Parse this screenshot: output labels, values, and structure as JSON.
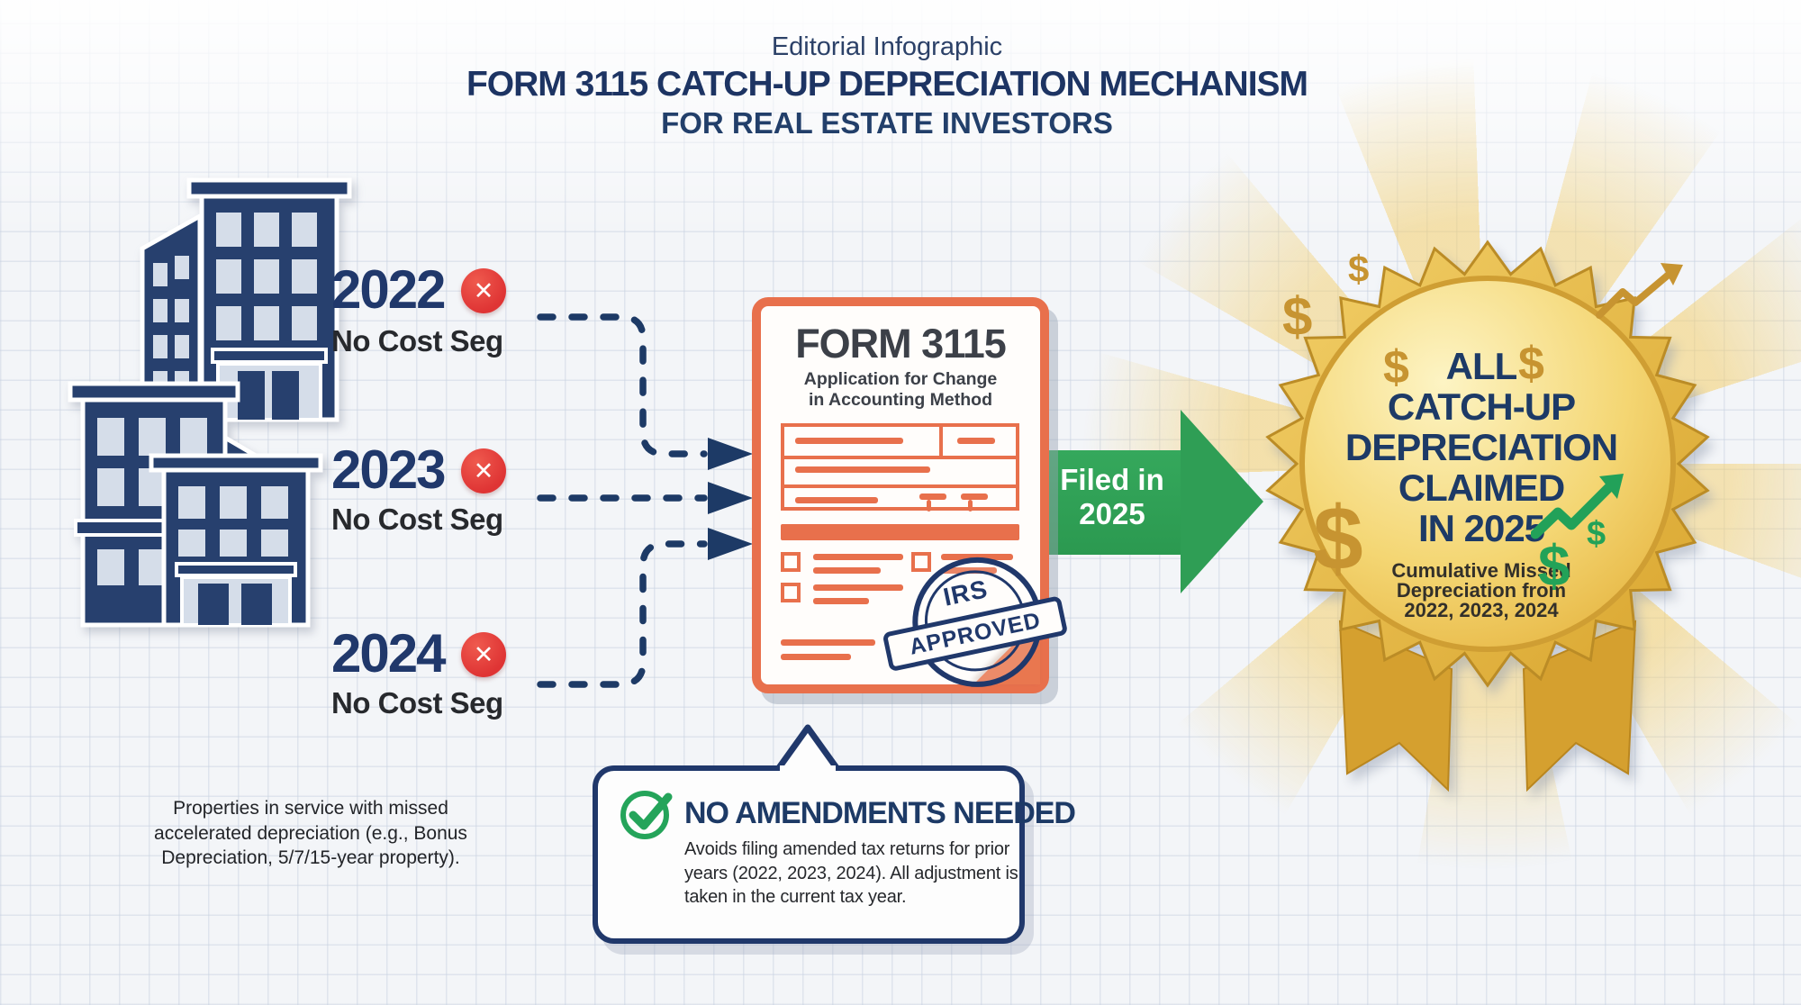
{
  "header": {
    "kicker": "Editorial Infographic",
    "title": "FORM 3115 CATCH-UP DEPRECIATION MECHANISM",
    "subtitle": "FOR REAL ESTATE INVESTORS"
  },
  "timeline": {
    "x_mark": "✕",
    "items": [
      {
        "year": "2022",
        "status": "No Cost Seg"
      },
      {
        "year": "2023",
        "status": "No Cost Seg"
      },
      {
        "year": "2024",
        "status": "No Cost Seg"
      }
    ],
    "caption": "Properties in service with missed accelerated depreciation (e.g., Bonus Depreciation, 5/7/15-year property)."
  },
  "form3115": {
    "title": "FORM 3115",
    "subtitle_line1": "Application for Change",
    "subtitle_line2": "in Accounting Method",
    "stamp_top": "IRS",
    "stamp_label": "APPROVED"
  },
  "filed_arrow": {
    "line1": "Filed in",
    "line2": "2025"
  },
  "badge": {
    "line1": "ALL",
    "line2": "CATCH-UP",
    "line3": "DEPRECIATION",
    "line4": "CLAIMED",
    "line5": "IN 2025",
    "sub1": "Cumulative Missed",
    "sub2": "Depreciation from",
    "sub3": "2022, 2023, 2024",
    "dollar": "$"
  },
  "callout": {
    "title": "NO AMENDMENTS NEEDED",
    "body": "Avoids filing amended tax returns for prior years (2022, 2023, 2024). All adjustment is taken in the current tax year."
  },
  "colors": {
    "navy": "#1d3a66",
    "red": "#df3434",
    "orange": "#e8704c",
    "green": "#2f9e55",
    "gold": "#e7b63e",
    "gold_dark": "#c79431"
  }
}
